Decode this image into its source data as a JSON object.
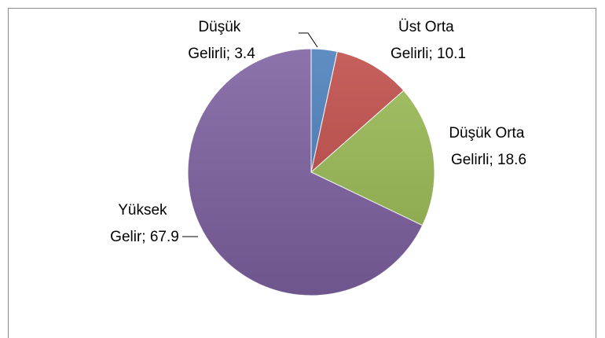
{
  "chart_data": {
    "type": "pie",
    "values": [
      3.4,
      10.1,
      18.6,
      67.9
    ],
    "value_labels": [
      "Düşük Gelirli; 3.4",
      "Üst Orta Gelirli; 10.1",
      "Düşük Orta Gelirli; 18.6",
      "Yüksek Gelir; 67.9"
    ],
    "colors": [
      "#4a7ebb",
      "#be4b48",
      "#98b954",
      "#7d60a0"
    ]
  }
}
